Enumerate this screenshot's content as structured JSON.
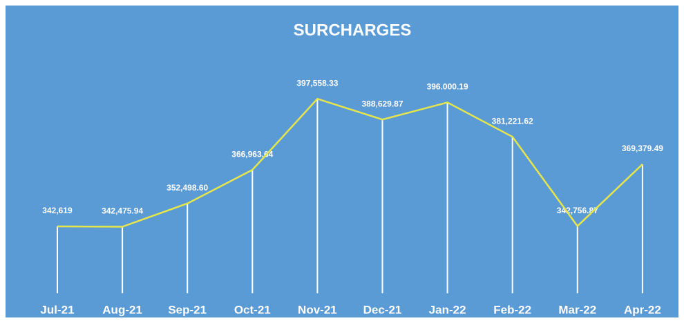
{
  "chart_data": {
    "type": "line",
    "title": "SURCHARGES",
    "categories": [
      "Jul-21",
      "Aug-21",
      "Sep-21",
      "Oct-21",
      "Nov-21",
      "Dec-21",
      "Jan-22",
      "Feb-22",
      "Mar-22",
      "Apr-22"
    ],
    "values": [
      342619,
      342475.94,
      352498.6,
      366963.64,
      397558.33,
      388629.87,
      396000.19,
      381221.62,
      342756.87,
      369379.49
    ],
    "value_labels": [
      "342,619",
      "342,475.94",
      "352,498.60",
      "366,963.64",
      "397,558.33",
      "388,629.87",
      "396.000.19",
      "381,221.62",
      "342,756.87",
      "369,379.49"
    ],
    "color": "#e6e64a",
    "ylim": [
      313800,
      400000
    ]
  }
}
